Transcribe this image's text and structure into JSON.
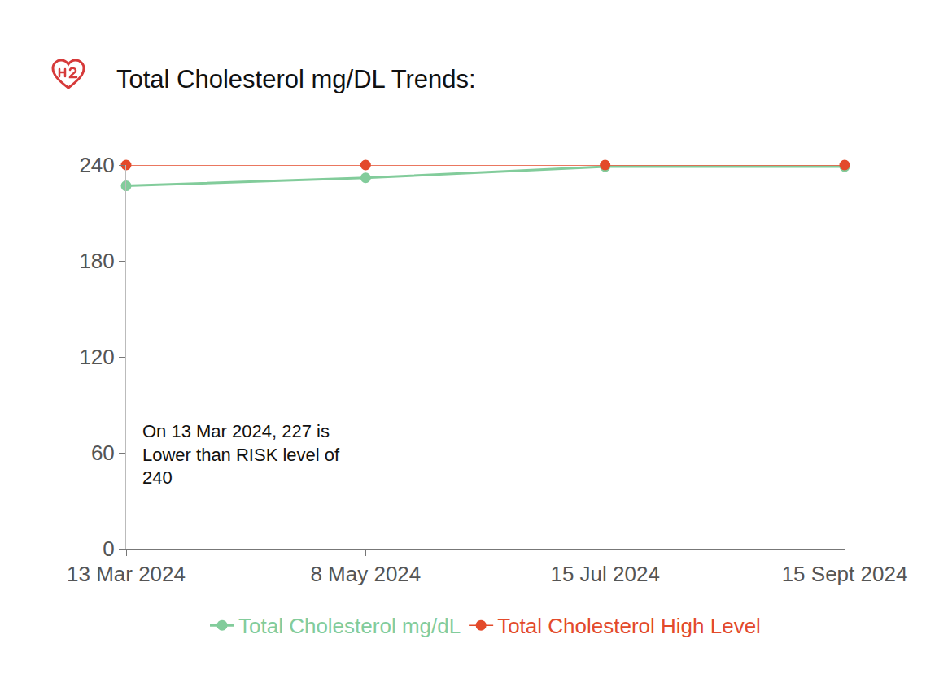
{
  "chart_data": {
    "type": "line",
    "title": "Total Cholesterol mg/DL Trends:",
    "categories": [
      "13 Mar 2024",
      "8 May 2024",
      "15 Jul 2024",
      "15 Sept 2024"
    ],
    "series": [
      {
        "name": "Total Cholesterol mg/dL",
        "color": "#82cc9b",
        "marker": "open-circle",
        "values": [
          227,
          232,
          239,
          239
        ]
      },
      {
        "name": "Total Cholesterol High Level",
        "color": "#e34a2b",
        "marker": "open-circle",
        "values": [
          240,
          240,
          240,
          240
        ]
      }
    ],
    "ylim": [
      0,
      240
    ],
    "yticks": [
      0,
      60,
      120,
      180,
      240
    ],
    "grid": false,
    "legend": "bottom",
    "annotation": {
      "category": "13 Mar 2024",
      "lines": [
        "On 13 Mar 2024, 227 is",
        "Lower than RISK level of",
        "240"
      ]
    }
  }
}
